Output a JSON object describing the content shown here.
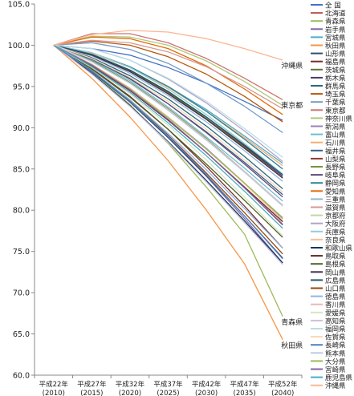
{
  "chart_data": {
    "type": "line",
    "title": "",
    "xlabel": "",
    "ylabel": "",
    "ylim": [
      60.0,
      105.0
    ],
    "y_ticks": [
      "105.0",
      "100.0",
      "95.0",
      "90.0",
      "85.0",
      "80.0",
      "75.0",
      "70.0",
      "65.0",
      "60.0"
    ],
    "grid": false,
    "legend_position": "right",
    "categories": [
      {
        "top": "平成22年",
        "bottom": "(2010)"
      },
      {
        "top": "平成27年",
        "bottom": "(2015)"
      },
      {
        "top": "平成32年",
        "bottom": "(2020)"
      },
      {
        "top": "平成37年",
        "bottom": "(2025)"
      },
      {
        "top": "平成42年",
        "bottom": "(2030)"
      },
      {
        "top": "平成47年",
        "bottom": "(2035)"
      },
      {
        "top": "平成52年",
        "bottom": "(2040)"
      }
    ],
    "annotations": [
      {
        "text": "沖縄県",
        "x": 6,
        "y": 98.2
      },
      {
        "text": "東京都",
        "x": 6,
        "y": 93.4
      },
      {
        "text": "青森県",
        "x": 6,
        "y": 67.1
      },
      {
        "text": "秋田県",
        "x": 6,
        "y": 64.3
      }
    ],
    "series": [
      {
        "name": "全 国",
        "color": "#4472c4",
        "values": [
          100,
          99.6,
          98.8,
          97.3,
          95.4,
          93.2,
          90.9
        ]
      },
      {
        "name": "北海道",
        "color": "#c0504d",
        "values": [
          100,
          98.8,
          96.9,
          94.2,
          91.1,
          87.7,
          84.1
        ]
      },
      {
        "name": "青森県",
        "color": "#9bbb59",
        "values": [
          100,
          96.8,
          92.8,
          88.1,
          82.8,
          77.1,
          67.1
        ]
      },
      {
        "name": "岩手県",
        "color": "#8064a2",
        "values": [
          100,
          96.9,
          93.2,
          88.8,
          84.1,
          79.0,
          73.6
        ]
      },
      {
        "name": "宮城県",
        "color": "#4bacc6",
        "values": [
          100,
          99.0,
          97.4,
          95.0,
          92.2,
          89.0,
          85.7
        ]
      },
      {
        "name": "秋田県",
        "color": "#f79646",
        "values": [
          100,
          96.0,
          91.3,
          86.0,
          80.0,
          73.5,
          64.3
        ]
      },
      {
        "name": "山形県",
        "color": "#2c4d75",
        "values": [
          100,
          96.8,
          93.1,
          88.8,
          84.2,
          79.3,
          74.2
        ]
      },
      {
        "name": "福島県",
        "color": "#772c2a",
        "values": [
          100,
          97.2,
          93.8,
          89.8,
          85.3,
          80.5,
          75.4
        ]
      },
      {
        "name": "茨城県",
        "color": "#5f7530",
        "values": [
          100,
          98.8,
          96.9,
          94.3,
          91.1,
          87.6,
          83.9
        ]
      },
      {
        "name": "栃木県",
        "color": "#4d3b62",
        "values": [
          100,
          98.9,
          97.0,
          94.4,
          91.3,
          87.8,
          84.1
        ]
      },
      {
        "name": "群馬県",
        "color": "#276a7c",
        "values": [
          100,
          98.5,
          96.3,
          93.5,
          90.2,
          86.5,
          82.6
        ]
      },
      {
        "name": "埼玉県",
        "color": "#b65708",
        "values": [
          100,
          100.5,
          100.0,
          98.6,
          96.5,
          93.8,
          90.7
        ]
      },
      {
        "name": "千葉県",
        "color": "#729aca",
        "values": [
          100,
          100.3,
          99.5,
          97.8,
          95.4,
          92.6,
          89.4
        ]
      },
      {
        "name": "東京都",
        "color": "#cd7371",
        "values": [
          100,
          101.4,
          101.4,
          100.3,
          98.4,
          96.0,
          93.4
        ]
      },
      {
        "name": "神奈川県",
        "color": "#afc97a",
        "values": [
          100,
          101.1,
          101.0,
          100.0,
          98.1,
          95.6,
          92.7
        ]
      },
      {
        "name": "新潟県",
        "color": "#9983b5",
        "values": [
          100,
          97.7,
          94.8,
          91.3,
          87.5,
          83.3,
          79.0
        ]
      },
      {
        "name": "富山県",
        "color": "#6fbdd1",
        "values": [
          100,
          98.2,
          95.7,
          92.5,
          88.9,
          85.1,
          81.1
        ]
      },
      {
        "name": "石川県",
        "color": "#f9ab6b",
        "values": [
          100,
          99.0,
          97.3,
          94.9,
          92.0,
          88.8,
          85.4
        ]
      },
      {
        "name": "福井県",
        "color": "#3a5f8a",
        "values": [
          100,
          98.3,
          95.9,
          92.9,
          89.5,
          85.8,
          81.9
        ]
      },
      {
        "name": "山梨県",
        "color": "#943634",
        "values": [
          100,
          97.6,
          94.6,
          91.0,
          87.0,
          82.7,
          78.2
        ]
      },
      {
        "name": "長野県",
        "color": "#76923c",
        "values": [
          100,
          98.1,
          95.5,
          92.3,
          88.7,
          84.7,
          80.6
        ]
      },
      {
        "name": "岐阜県",
        "color": "#5f497a",
        "values": [
          100,
          98.4,
          96.0,
          92.9,
          89.4,
          85.6,
          81.6
        ]
      },
      {
        "name": "静岡県",
        "color": "#31849b",
        "values": [
          100,
          99.1,
          97.4,
          95.0,
          92.0,
          88.6,
          85.0
        ]
      },
      {
        "name": "愛知県",
        "color": "#e36c09",
        "values": [
          100,
          101.0,
          100.8,
          99.6,
          97.5,
          94.7,
          91.6
        ]
      },
      {
        "name": "三重県",
        "color": "#95b3d7",
        "values": [
          100,
          98.7,
          96.6,
          93.9,
          90.7,
          87.2,
          83.5
        ]
      },
      {
        "name": "滋賀県",
        "color": "#d99694",
        "values": [
          100,
          100.6,
          100.3,
          99.2,
          97.4,
          95.0,
          92.3
        ]
      },
      {
        "name": "京都府",
        "color": "#c3d69b",
        "values": [
          100,
          99.1,
          97.3,
          94.7,
          91.6,
          88.0,
          84.3
        ]
      },
      {
        "name": "大阪府",
        "color": "#b2a2c7",
        "values": [
          100,
          99.6,
          98.2,
          95.9,
          93.0,
          89.6,
          85.9
        ]
      },
      {
        "name": "兵庫県",
        "color": "#92cddc",
        "values": [
          100,
          99.1,
          97.3,
          94.7,
          91.6,
          88.1,
          84.4
        ]
      },
      {
        "name": "奈良県",
        "color": "#fac08f",
        "values": [
          100,
          97.7,
          94.8,
          91.3,
          87.4,
          83.2,
          78.8
        ]
      },
      {
        "name": "和歌山県",
        "color": "#17375e",
        "values": [
          100,
          96.6,
          92.7,
          88.3,
          83.6,
          78.7,
          73.6
        ]
      },
      {
        "name": "鳥取県",
        "color": "#632523",
        "values": [
          100,
          97.5,
          94.5,
          90.9,
          87.0,
          82.8,
          78.6
        ]
      },
      {
        "name": "島根県",
        "color": "#4f6228",
        "values": [
          100,
          97.1,
          93.7,
          89.8,
          85.6,
          81.2,
          76.7
        ]
      },
      {
        "name": "岡山県",
        "color": "#3f3151",
        "values": [
          100,
          98.8,
          96.8,
          94.1,
          91.0,
          87.5,
          83.9
        ]
      },
      {
        "name": "広島県",
        "color": "#215968",
        "values": [
          100,
          98.9,
          97.0,
          94.4,
          91.3,
          87.9,
          84.3
        ]
      },
      {
        "name": "山口県",
        "color": "#974806",
        "values": [
          100,
          96.9,
          93.3,
          89.1,
          84.5,
          79.7,
          74.7
        ]
      },
      {
        "name": "徳島県",
        "color": "#8eb4e3",
        "values": [
          100,
          96.9,
          93.4,
          89.3,
          84.9,
          80.2,
          75.4
        ]
      },
      {
        "name": "香川県",
        "color": "#e6b9b8",
        "values": [
          100,
          98.0,
          95.4,
          92.2,
          88.6,
          84.7,
          80.6
        ]
      },
      {
        "name": "愛媛県",
        "color": "#d7e4bd",
        "values": [
          100,
          97.3,
          94.1,
          90.3,
          86.1,
          81.6,
          76.9
        ]
      },
      {
        "name": "高知県",
        "color": "#ccc1da",
        "values": [
          100,
          96.5,
          92.6,
          88.2,
          83.4,
          78.5,
          73.4
        ]
      },
      {
        "name": "福岡県",
        "color": "#b7dee8",
        "values": [
          100,
          99.6,
          98.2,
          96.0,
          93.2,
          89.9,
          86.4
        ]
      },
      {
        "name": "佐賀県",
        "color": "#fcd5b5",
        "values": [
          100,
          98.4,
          96.1,
          93.2,
          89.8,
          86.1,
          82.2
        ]
      },
      {
        "name": "長崎県",
        "color": "#4f81bd",
        "values": [
          100,
          96.9,
          93.2,
          89.0,
          84.3,
          79.3,
          74.1
        ]
      },
      {
        "name": "熊本県",
        "color": "#b9cde5",
        "values": [
          100,
          98.0,
          95.4,
          92.1,
          88.5,
          84.6,
          80.5
        ]
      },
      {
        "name": "大分県",
        "color": "#9bbb59",
        "values": [
          100,
          97.6,
          94.7,
          91.2,
          87.4,
          83.3,
          79.1
        ]
      },
      {
        "name": "宮崎県",
        "color": "#8064a2",
        "values": [
          100,
          97.6,
          94.6,
          91.0,
          87.0,
          82.7,
          78.3
        ]
      },
      {
        "name": "鹿児島県",
        "color": "#4bacc6",
        "values": [
          100,
          97.4,
          94.3,
          90.6,
          86.6,
          82.3,
          77.8
        ]
      },
      {
        "name": "沖縄県",
        "color": "#fbb692",
        "values": [
          100,
          101.3,
          101.8,
          101.6,
          100.8,
          99.6,
          98.2
        ]
      }
    ]
  }
}
